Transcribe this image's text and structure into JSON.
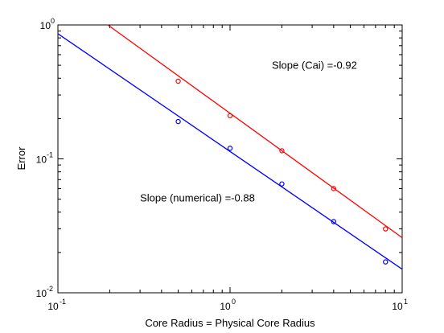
{
  "chart_data": {
    "type": "line",
    "title": "",
    "xlabel": "Core Radius = Physical Core Radius",
    "ylabel": "Error",
    "xscale": "log",
    "yscale": "log",
    "xlim": [
      0.1,
      10
    ],
    "ylim": [
      0.01,
      1
    ],
    "grid": false,
    "x_ticks": [
      {
        "value": 0.1,
        "base": "10",
        "exp": "-1"
      },
      {
        "value": 1,
        "base": "10",
        "exp": "0"
      },
      {
        "value": 10,
        "base": "10",
        "exp": "1"
      }
    ],
    "y_ticks": [
      {
        "value": 0.01,
        "base": "10",
        "exp": "-2"
      },
      {
        "value": 0.1,
        "base": "10",
        "exp": "-1"
      },
      {
        "value": 1,
        "base": "10",
        "exp": "0"
      }
    ],
    "series": [
      {
        "color": "#ff0000",
        "points": {
          "x": [
            0.5,
            1,
            2,
            4,
            8
          ],
          "y": [
            0.38,
            0.21,
            0.115,
            0.06,
            0.03
          ]
        },
        "fit": {
          "x": [
            0.195,
            10
          ],
          "y": [
            1.0,
            0.0258
          ]
        }
      },
      {
        "color": "#0000ff",
        "points": {
          "x": [
            0.5,
            1,
            2,
            4,
            8
          ],
          "y": [
            0.19,
            0.12,
            0.065,
            0.034,
            0.017
          ]
        },
        "fit": {
          "x": [
            0.1,
            10
          ],
          "y": [
            0.86,
            0.015
          ]
        }
      }
    ],
    "annotations": [
      {
        "text": "Slope (Cai) =-0.92",
        "x": 1.75,
        "y": 0.47
      },
      {
        "text": "Slope (numerical) =-0.88",
        "x": 0.3,
        "y": 0.048
      }
    ]
  }
}
